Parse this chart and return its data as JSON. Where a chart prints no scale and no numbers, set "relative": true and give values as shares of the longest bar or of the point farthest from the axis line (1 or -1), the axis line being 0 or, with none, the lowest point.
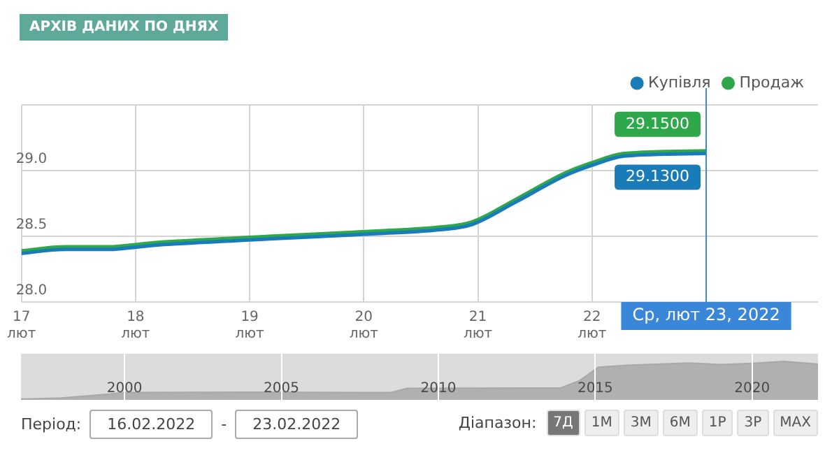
{
  "chart_data": [
    {
      "type": "line",
      "title": "АРХІВ ДАНИХ ПО ДНЯХ",
      "x": [
        17.0,
        17.38,
        17.76,
        18.14,
        19.17,
        20.11,
        20.67,
        20.95,
        21.33,
        21.76,
        22.0,
        22.28,
        23.0
      ],
      "series": [
        {
          "name": "Купівля",
          "color": "#1a7bb9",
          "values": [
            28.37,
            28.4,
            28.4,
            28.43,
            28.48,
            28.52,
            28.55,
            28.59,
            28.76,
            28.96,
            29.04,
            29.11,
            29.13
          ],
          "value_labels": [
            null,
            null,
            null,
            null,
            null,
            null,
            null,
            null,
            null,
            null,
            null,
            null,
            "29.1300"
          ]
        },
        {
          "name": "Продаж",
          "color": "#2ea84a",
          "values": [
            28.39,
            28.42,
            28.42,
            28.45,
            28.5,
            28.54,
            28.57,
            28.61,
            28.78,
            28.98,
            29.06,
            29.13,
            29.15
          ],
          "value_labels": [
            null,
            null,
            null,
            null,
            null,
            null,
            null,
            null,
            null,
            null,
            null,
            null,
            "29.1500"
          ]
        }
      ],
      "xlim": [
        17,
        23.98
      ],
      "xticks": [
        {
          "value": 17,
          "label": "17 лют"
        },
        {
          "value": 18,
          "label": "18 лют"
        },
        {
          "value": 19,
          "label": "19 лют"
        },
        {
          "value": 20,
          "label": "20 лют"
        },
        {
          "value": 21,
          "label": "21 лют"
        },
        {
          "value": 22,
          "label": "22 лют"
        },
        {
          "value": 23,
          "label": null
        }
      ],
      "ylim": [
        28.0,
        29.5
      ],
      "yticks": [
        {
          "value": 28,
          "label": "28.0"
        },
        {
          "value": 28.5,
          "label": "28.5"
        },
        {
          "value": 29,
          "label": "29.0"
        },
        {
          "value": 29.5,
          "label": null
        }
      ],
      "grid": true,
      "legend": "top right",
      "marker": "none",
      "ref_lines": [
        {
          "axis": "x",
          "value": 23,
          "label": "Ср, лют 23, 2022",
          "color": "#3a87d9"
        }
      ]
    },
    {
      "type": "area",
      "relative": true,
      "x": [
        1996.7,
        1998,
        1999.5,
        2000,
        2004,
        2008.5,
        2009,
        2013.9,
        2014.5,
        2015.1,
        2016,
        2018,
        2019,
        2020,
        2021,
        2022.1
      ],
      "values": [
        0.02,
        0.05,
        0.15,
        0.19,
        0.2,
        0.19,
        0.3,
        0.31,
        0.5,
        0.85,
        0.9,
        0.96,
        0.92,
        0.95,
        1.0,
        0.93
      ],
      "color": "#b0b0b0",
      "xlim": [
        1996.7,
        2022.1
      ],
      "xticks": [
        2000,
        2005,
        2010,
        2015,
        2020
      ],
      "grid": "x",
      "annotations": [
        "Період:",
        "16.02.2022",
        "-",
        "23.02.2022",
        "Діапазон:",
        "7Д",
        "1М",
        "3М",
        "6М",
        "1Р",
        "3Р",
        "MAX"
      ]
    }
  ]
}
